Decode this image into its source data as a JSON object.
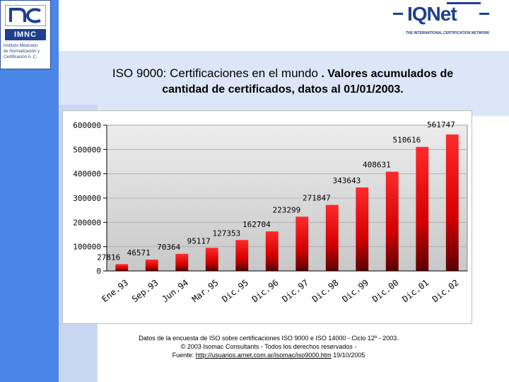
{
  "logo_left": {
    "name": "IMNC",
    "subtitle_lines": [
      "Instituto Mexicano",
      "de Normalización y",
      "Certificación A. C."
    ]
  },
  "logo_right": {
    "name": "IQNet",
    "tagline": "THE INTERNATIONAL CERTIFICATION NETWORK"
  },
  "title": {
    "line1_part1": "ISO 9000: Certificaciones en el mundo",
    "line1_part2": ". Valores acumulados de",
    "line2": "cantidad de certificados, datos al 01/01/2003."
  },
  "chart_data": {
    "type": "bar",
    "categories": [
      "Ene.93",
      "Sep.93",
      "Jun.94",
      "Mar.95",
      "Dic.95",
      "Dic.96",
      "Dic.97",
      "Dic.98",
      "Dic.99",
      "Dic.00",
      "Dic.01",
      "Dic.02"
    ],
    "values": [
      27816,
      46571,
      70364,
      95117,
      127353,
      162704,
      223299,
      271847,
      343643,
      408631,
      510616,
      561747
    ],
    "data_labels": [
      "27816",
      "46571",
      "70364",
      "95117",
      "127353",
      "162704",
      "223299",
      "271847",
      "343643",
      "408631",
      "510616",
      "561747"
    ],
    "yticks": [
      "0",
      "100000",
      "200000",
      "300000",
      "400000",
      "500000",
      "600000"
    ],
    "ytick_values": [
      0,
      100000,
      200000,
      300000,
      400000,
      500000,
      600000
    ],
    "ylim": [
      0,
      600000
    ],
    "title": "",
    "xlabel": "",
    "ylabel": "",
    "grid": true,
    "bar_color": "#d40000",
    "plot_bg": "#c8c8c8"
  },
  "footer": {
    "line1": "Datos de la encuesta de ISO sobre certificaciones ISO 9000 e ISO 14000 - Ciclo 12º - 2003.",
    "line2": "© 2003 Isomac Consultants - Todos los derechos reservados -",
    "line3_prefix": "Fuente:",
    "link": "http://usuarios.arnet.com.ar/isomac/iso9000.htm",
    "date": "19/10/2005"
  }
}
